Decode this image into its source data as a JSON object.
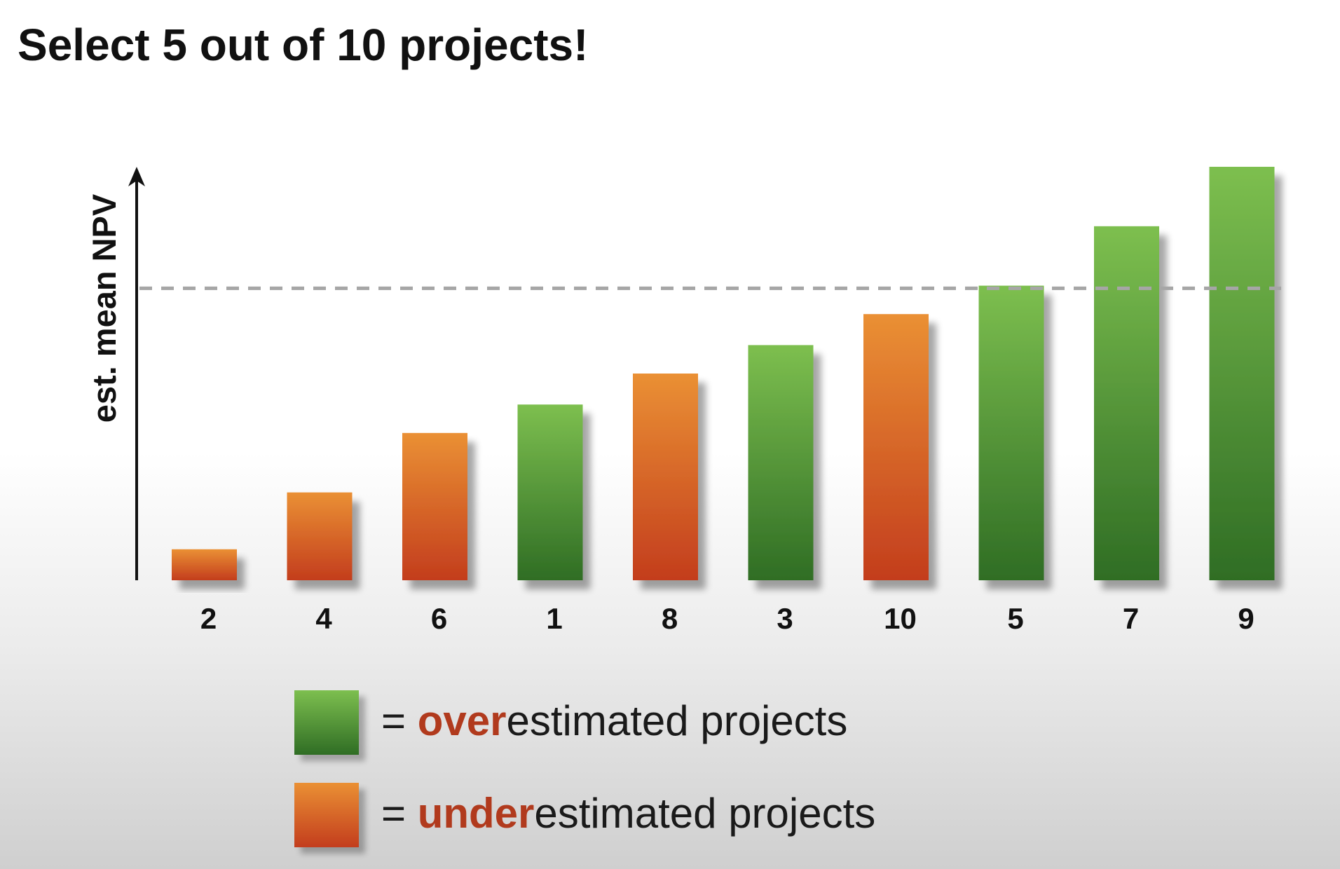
{
  "title": "Select 5 out of 10 projects!",
  "chart_data": {
    "type": "bar",
    "ylabel": "est. mean NPV",
    "categories": [
      "2",
      "4",
      "6",
      "1",
      "8",
      "3",
      "10",
      "5",
      "7",
      "9"
    ],
    "values": [
      6,
      17,
      28.5,
      34,
      40,
      45.5,
      51.5,
      57,
      68.5,
      80
    ],
    "status": [
      "underestimated",
      "underestimated",
      "underestimated",
      "overestimated",
      "underestimated",
      "overestimated",
      "underestimated",
      "overestimated",
      "overestimated",
      "overestimated"
    ],
    "ylim": [
      0,
      80
    ],
    "reference_line": 56.5,
    "grid": false,
    "legend_position": "bottom"
  },
  "legend": {
    "items": [
      {
        "type": "overestimated",
        "sign": "= ",
        "emphasis": "over",
        "rest": "estimated projects"
      },
      {
        "type": "underestimated",
        "sign": "= ",
        "emphasis": "under",
        "rest": "estimated projects"
      }
    ]
  },
  "colors": {
    "green_top": "#7dbf4f",
    "green_bottom": "#2f6d24",
    "orange_top": "#ea9034",
    "orange_bottom": "#c33d1d",
    "emphasis_text": "#b13a1d",
    "reference_line": "#a6a6a6",
    "axis": "#111111"
  }
}
